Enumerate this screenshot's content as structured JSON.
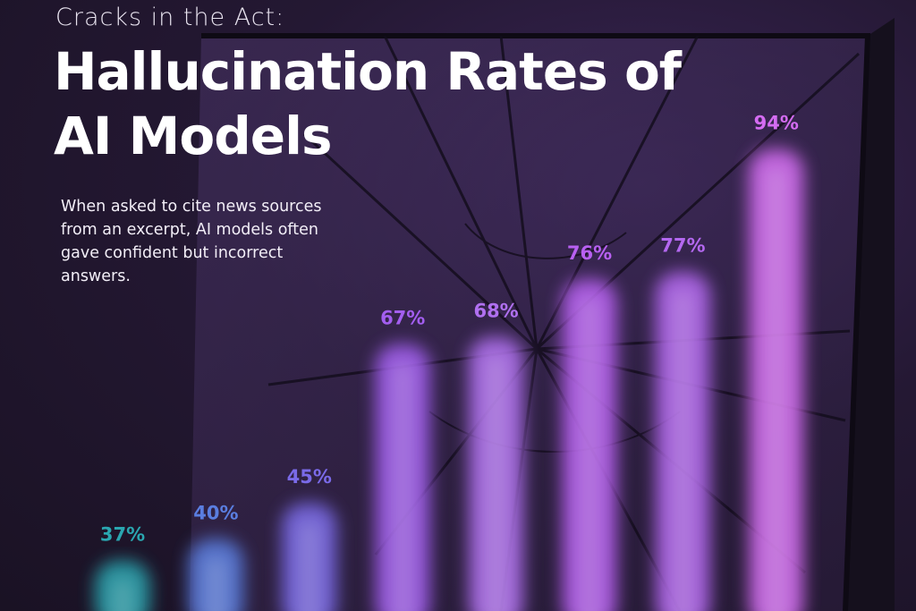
{
  "chart_data": {
    "type": "bar",
    "kicker": "Cracks in the Act:",
    "title": "Hallucination Rates of AI Models",
    "subtitle": "When asked to cite news sources from an excerpt, AI models often gave confident but incorrect answers.",
    "values": [
      37,
      40,
      45,
      67,
      68,
      76,
      77,
      94
    ],
    "value_labels": [
      "37%",
      "40%",
      "45%",
      "67%",
      "68%",
      "76%",
      "77%",
      "94%"
    ],
    "colors": [
      "#2aa6b0",
      "#5a7ee0",
      "#7a6ae8",
      "#a35ef0",
      "#b070f0",
      "#b860f2",
      "#b468f0",
      "#d46cf2"
    ]
  }
}
